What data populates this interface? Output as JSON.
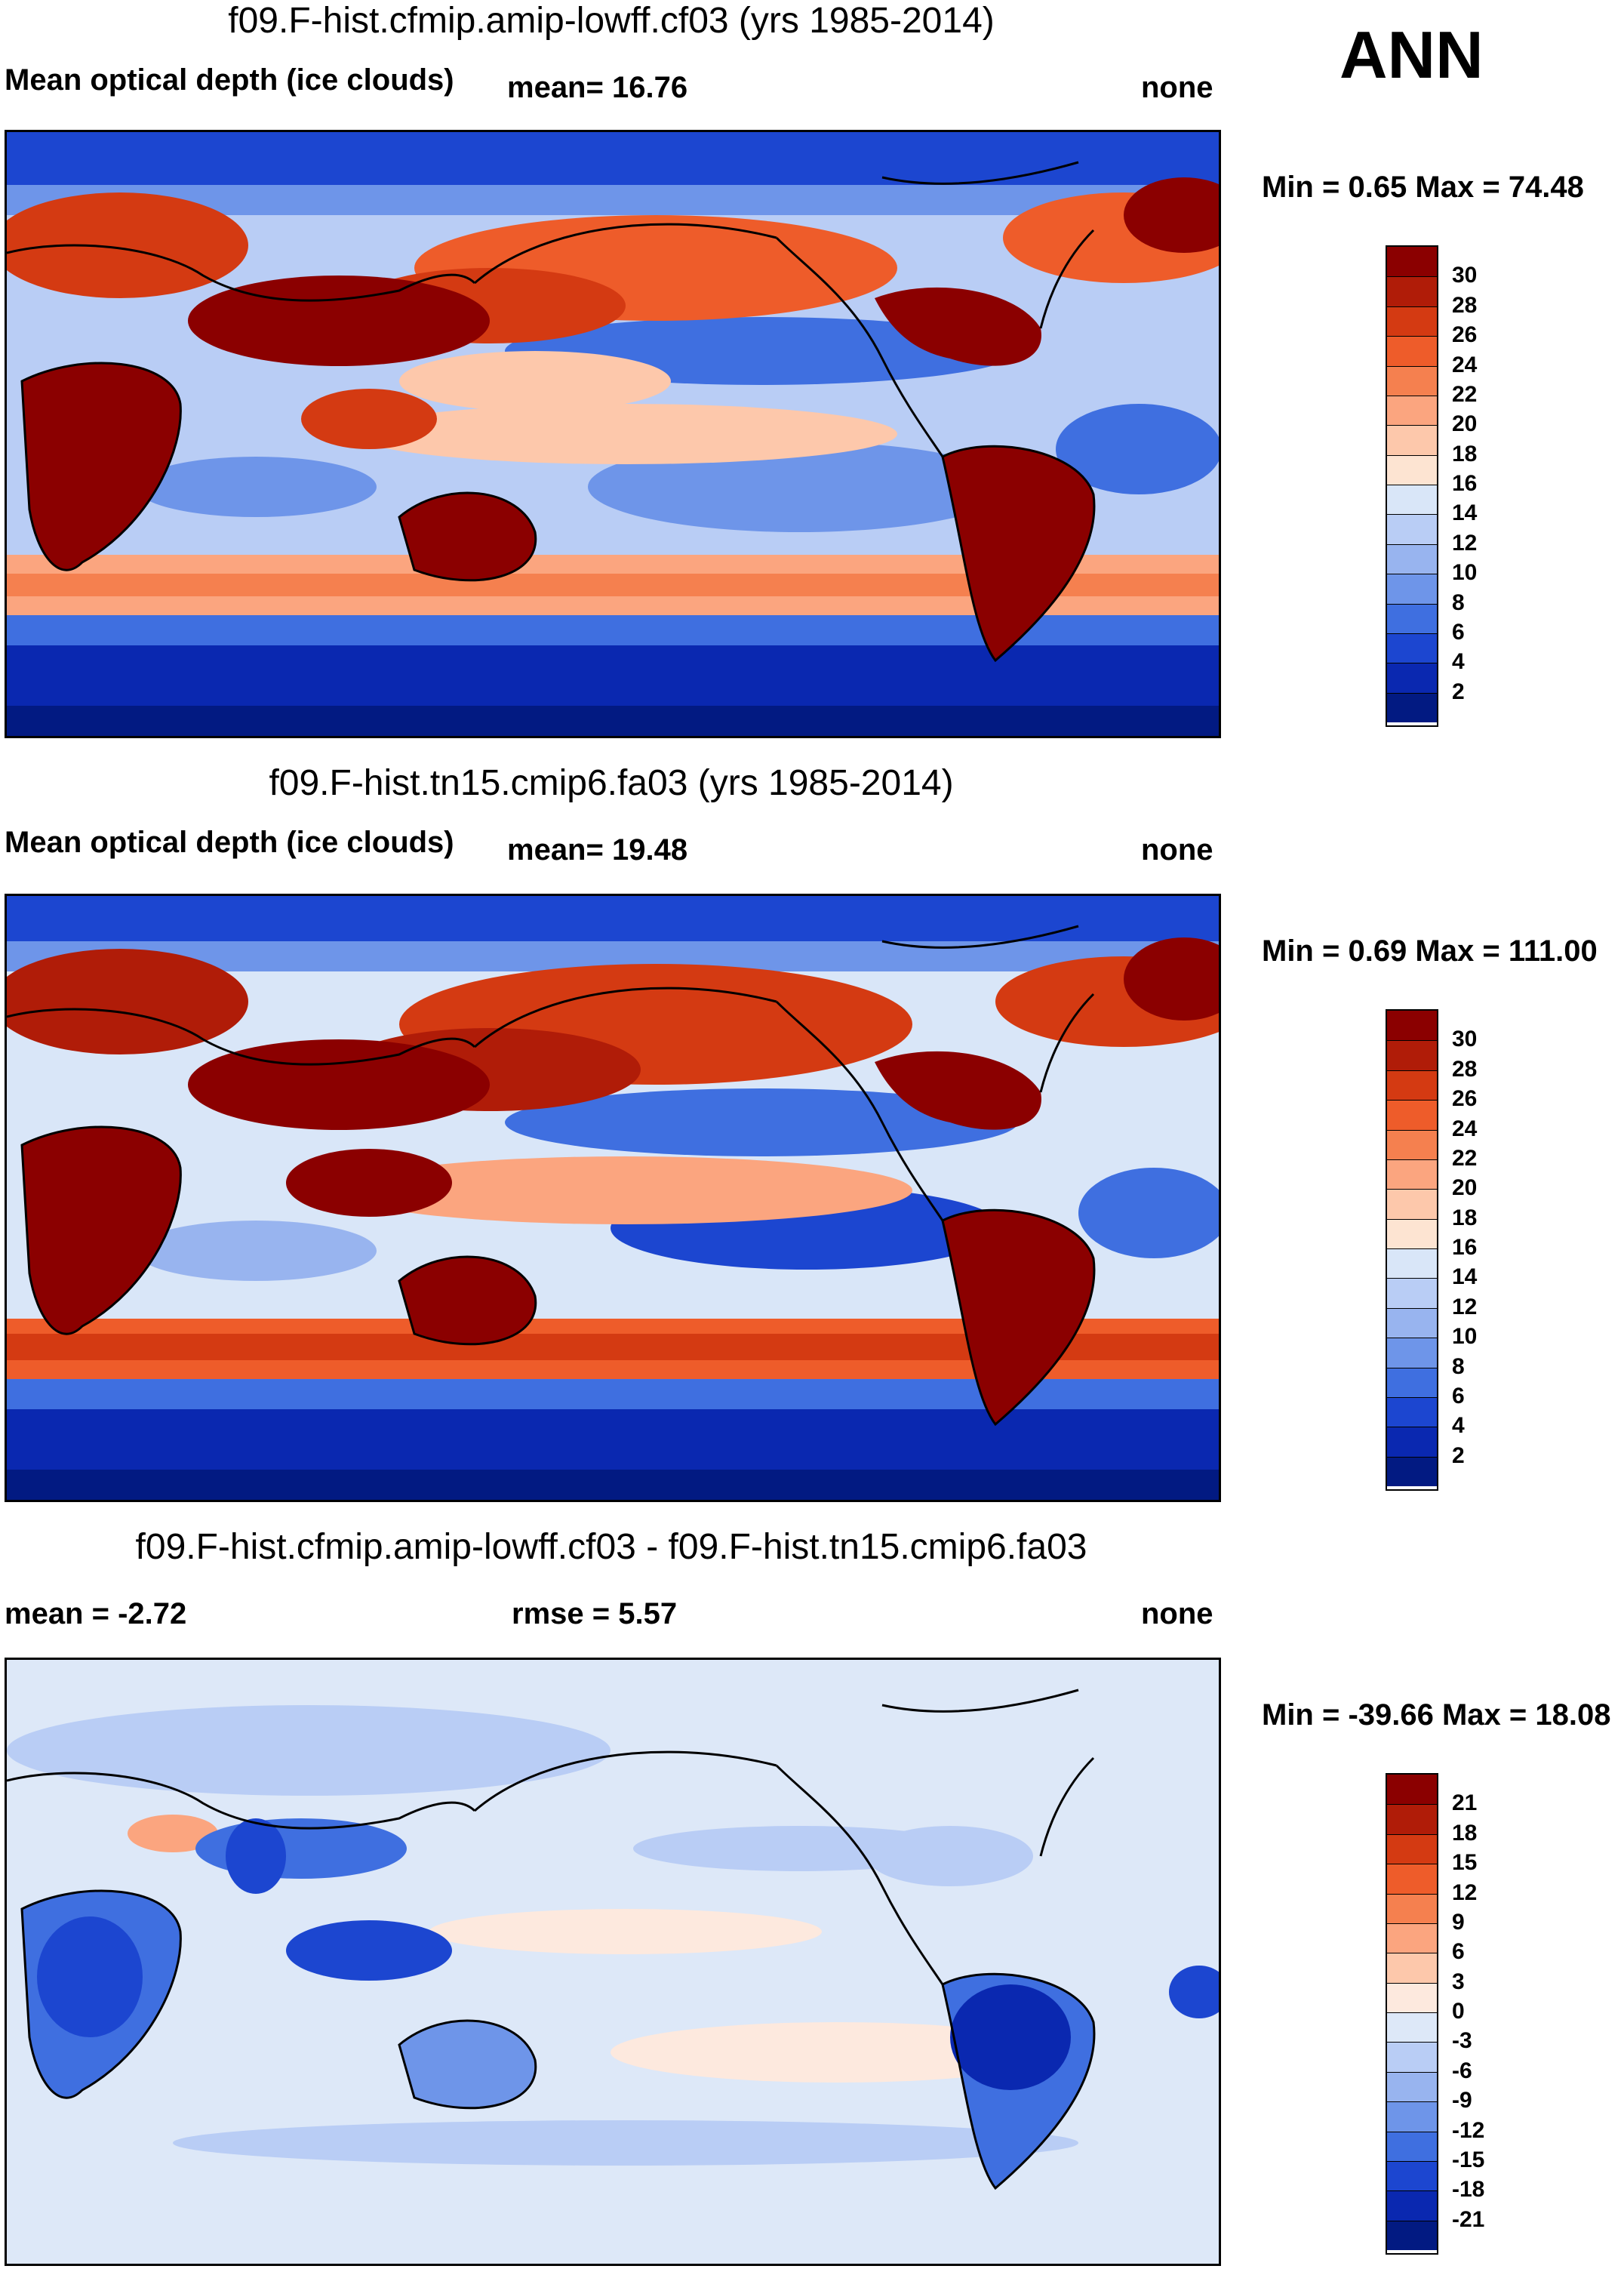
{
  "season": "ANN",
  "panels": [
    {
      "title": "f09.F-hist.cfmip.amip-lowff.cf03 (yrs 1985-2014)",
      "left_label": "Mean optical depth (ice clouds)",
      "mid_label": "mean=  16.76",
      "right_label": "none",
      "minmax": "Min =   0.65 Max =  74.48",
      "min": 0.65,
      "max": 74.48,
      "colorbar": {
        "labels": [
          "30",
          "28",
          "26",
          "24",
          "22",
          "20",
          "18",
          "16",
          "14",
          "12",
          "10",
          "8",
          "6",
          "4",
          "2"
        ],
        "colors": [
          "#8b0000",
          "#b01c08",
          "#d43a12",
          "#ee5c2a",
          "#f5804f",
          "#fba57f",
          "#fdc8ab",
          "#fde4d2",
          "#d9e6f8",
          "#b9cdf5",
          "#98b4ef",
          "#6e95e9",
          "#3f6fe0",
          "#1c46d0",
          "#0a28b0",
          "#021a82"
        ]
      },
      "mean": 16.76
    },
    {
      "title": "f09.F-hist.tn15.cmip6.fa03 (yrs 1985-2014)",
      "left_label": "Mean optical depth (ice clouds)",
      "mid_label": "mean=  19.48",
      "right_label": "none",
      "minmax": "Min =   0.69 Max = 111.00",
      "min": 0.69,
      "max": 111.0,
      "colorbar": {
        "labels": [
          "30",
          "28",
          "26",
          "24",
          "22",
          "20",
          "18",
          "16",
          "14",
          "12",
          "10",
          "8",
          "6",
          "4",
          "2"
        ],
        "colors": [
          "#8b0000",
          "#b01c08",
          "#d43a12",
          "#ee5c2a",
          "#f5804f",
          "#fba57f",
          "#fdc8ab",
          "#fde4d2",
          "#d9e6f8",
          "#b9cdf5",
          "#98b4ef",
          "#6e95e9",
          "#3f6fe0",
          "#1c46d0",
          "#0a28b0",
          "#021a82"
        ]
      },
      "mean": 19.48
    },
    {
      "title": "f09.F-hist.cfmip.amip-lowff.cf03 - f09.F-hist.tn15.cmip6.fa03",
      "left_label": "mean =  -2.72",
      "mid_label": "rmse =    5.57",
      "right_label": "none",
      "minmax": "Min = -39.66 Max =  18.08",
      "min": -39.66,
      "max": 18.08,
      "colorbar": {
        "labels": [
          "21",
          "18",
          "15",
          "12",
          "9",
          "6",
          "3",
          "0",
          "-3",
          "-6",
          "-9",
          "-12",
          "-15",
          "-18",
          "-21"
        ],
        "colors": [
          "#8b0000",
          "#b01c08",
          "#d43a12",
          "#ee5c2a",
          "#f5804f",
          "#fba57f",
          "#fdc8ab",
          "#fde9de",
          "#dde8f8",
          "#b9cdf5",
          "#98b4ef",
          "#6e95e9",
          "#3f6fe0",
          "#1c46d0",
          "#0a28b0",
          "#021a82"
        ]
      },
      "mean": -2.72,
      "rmse": 5.57
    }
  ]
}
